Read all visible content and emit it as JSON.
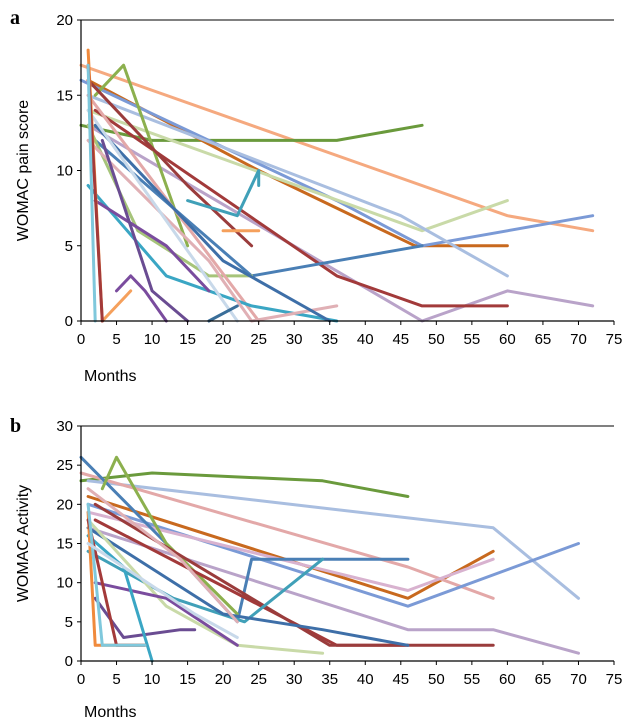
{
  "chart_data": [
    {
      "panel": "a",
      "type": "line",
      "title": "",
      "xlabel": "Months",
      "ylabel": "WOMAC pain score",
      "xlim": [
        0,
        75
      ],
      "ylim": [
        0,
        20
      ],
      "xticks": [
        "0",
        "5",
        "10",
        "15",
        "20",
        "25",
        "30",
        "35",
        "40",
        "45",
        "50",
        "55",
        "60",
        "65",
        "70",
        "75"
      ],
      "yticks": [
        "0",
        "5",
        "10",
        "15",
        "20"
      ],
      "grid": false,
      "legend": "none",
      "series": [
        {
          "color": "#f5a97f",
          "x": [
            0,
            60,
            72
          ],
          "y": [
            17,
            7,
            6
          ]
        },
        {
          "color": "#6a9a3c",
          "x": [
            0,
            10,
            20,
            36,
            48
          ],
          "y": [
            13,
            12,
            12,
            12,
            13
          ]
        },
        {
          "color": "#c8691e",
          "x": [
            1,
            25,
            47,
            60
          ],
          "y": [
            16,
            10,
            5,
            5
          ]
        },
        {
          "color": "#7b9ad6",
          "x": [
            0,
            36,
            48,
            72
          ],
          "y": [
            16,
            8,
            5,
            7
          ]
        },
        {
          "color": "#c9daa8",
          "x": [
            1,
            48,
            60
          ],
          "y": [
            14,
            6,
            8
          ]
        },
        {
          "color": "#a9bee0",
          "x": [
            1,
            45,
            60
          ],
          "y": [
            15,
            7,
            3
          ]
        },
        {
          "color": "#b9a3c9",
          "x": [
            1,
            48,
            60,
            72
          ],
          "y": [
            13,
            0,
            2,
            1
          ]
        },
        {
          "color": "#a23a3a",
          "x": [
            2,
            36,
            48,
            60
          ],
          "y": [
            14,
            3,
            1,
            1
          ]
        },
        {
          "color": "#4a7fb5",
          "x": [
            2,
            24,
            36,
            48
          ],
          "y": [
            12,
            3,
            4,
            5
          ]
        },
        {
          "color": "#8cb04e",
          "x": [
            2,
            6,
            15
          ],
          "y": [
            15,
            17,
            5
          ]
        },
        {
          "color": "#a6c47a",
          "x": [
            1,
            8,
            18,
            24
          ],
          "y": [
            13,
            6,
            3,
            3
          ]
        },
        {
          "color": "#e3a8a8",
          "x": [
            1,
            25
          ],
          "y": [
            15,
            0
          ]
        },
        {
          "color": "#3aa6c4",
          "x": [
            1,
            12,
            24,
            36
          ],
          "y": [
            9,
            3,
            1,
            0
          ]
        },
        {
          "color": "#e0b0b5",
          "x": [
            1,
            18,
            24,
            36
          ],
          "y": [
            12,
            4,
            0,
            1
          ]
        },
        {
          "color": "#9a3c3c",
          "x": [
            1,
            15,
            24
          ],
          "y": [
            16,
            9,
            5
          ]
        },
        {
          "color": "#3e6fa8",
          "x": [
            2,
            20,
            35
          ],
          "y": [
            13,
            4,
            0
          ]
        },
        {
          "color": "#7a4c9e",
          "x": [
            2,
            12,
            18
          ],
          "y": [
            8,
            5,
            2
          ]
        },
        {
          "color": "#6a4c92",
          "x": [
            3,
            10,
            15
          ],
          "y": [
            12,
            2,
            0
          ]
        },
        {
          "color": "#c8d9ea",
          "x": [
            1,
            16,
            22
          ],
          "y": [
            14,
            4,
            0
          ]
        },
        {
          "color": "#f08a3c",
          "x": [
            1,
            3
          ],
          "y": [
            18,
            0
          ]
        },
        {
          "color": "#f5a05c",
          "x": [
            3,
            7
          ],
          "y": [
            0,
            2
          ]
        },
        {
          "color": "#a33a3a",
          "x": [
            1,
            3
          ],
          "y": [
            17,
            0
          ]
        },
        {
          "color": "#7fc8dc",
          "x": [
            1,
            2
          ],
          "y": [
            17,
            0
          ]
        },
        {
          "color": "#f5a05c",
          "x": [
            20,
            25
          ],
          "y": [
            6,
            6
          ]
        },
        {
          "color": "#40a0b8",
          "x": [
            15,
            22,
            25,
            25
          ],
          "y": [
            8,
            7,
            10,
            9
          ]
        },
        {
          "color": "#3a6e99",
          "x": [
            18,
            22
          ],
          "y": [
            0,
            1
          ]
        },
        {
          "color": "#7a4c9e",
          "x": [
            5,
            7,
            9,
            12
          ],
          "y": [
            2,
            3,
            2,
            0
          ]
        }
      ]
    },
    {
      "panel": "b",
      "type": "line",
      "title": "",
      "xlabel": "Months",
      "ylabel": "WOMAC Activity",
      "xlim": [
        0,
        75
      ],
      "ylim": [
        0,
        30
      ],
      "xticks": [
        "0",
        "5",
        "10",
        "15",
        "20",
        "25",
        "30",
        "35",
        "40",
        "45",
        "50",
        "55",
        "60",
        "65",
        "70",
        "75"
      ],
      "yticks": [
        "0",
        "5",
        "10",
        "15",
        "20",
        "25",
        "30"
      ],
      "grid": false,
      "legend": "none",
      "series": [
        {
          "color": "#6a9a3c",
          "x": [
            0,
            10,
            34,
            46
          ],
          "y": [
            23,
            24,
            23,
            21
          ]
        },
        {
          "color": "#a9bee0",
          "x": [
            1,
            58,
            70
          ],
          "y": [
            23,
            17,
            8
          ]
        },
        {
          "color": "#c8691e",
          "x": [
            1,
            46,
            58
          ],
          "y": [
            21,
            8,
            14
          ]
        },
        {
          "color": "#e3a8a8",
          "x": [
            0,
            46,
            58
          ],
          "y": [
            24,
            12,
            8
          ]
        },
        {
          "color": "#7b9ad6",
          "x": [
            1,
            46,
            70
          ],
          "y": [
            20,
            7,
            15
          ]
        },
        {
          "color": "#d8b2cf",
          "x": [
            1,
            46,
            58
          ],
          "y": [
            19,
            9,
            13
          ]
        },
        {
          "color": "#b9a3c9",
          "x": [
            1,
            46,
            58,
            70
          ],
          "y": [
            17,
            4,
            4,
            1
          ]
        },
        {
          "color": "#4a7fb5",
          "x": [
            0,
            12,
            22,
            24,
            35,
            46
          ],
          "y": [
            26,
            15,
            5,
            13,
            13,
            13
          ]
        },
        {
          "color": "#8cb04e",
          "x": [
            3,
            5,
            12,
            22
          ],
          "y": [
            22,
            26,
            15,
            6
          ]
        },
        {
          "color": "#a23a3a",
          "x": [
            2,
            36,
            46
          ],
          "y": [
            18,
            2,
            2
          ]
        },
        {
          "color": "#9a3c3c",
          "x": [
            2,
            35,
            58
          ],
          "y": [
            20,
            2,
            2
          ]
        },
        {
          "color": "#40a0b8",
          "x": [
            1,
            13,
            23,
            34
          ],
          "y": [
            14,
            8,
            5,
            13
          ]
        },
        {
          "color": "#3e6fa8",
          "x": [
            1,
            20,
            34,
            46
          ],
          "y": [
            17,
            6,
            4,
            2
          ]
        },
        {
          "color": "#c9daa8",
          "x": [
            1,
            12,
            22,
            34
          ],
          "y": [
            18,
            7,
            2,
            1
          ]
        },
        {
          "color": "#7a4c9e",
          "x": [
            2,
            12,
            22
          ],
          "y": [
            10,
            8,
            2
          ]
        },
        {
          "color": "#6a4c92",
          "x": [
            2,
            6,
            14,
            16
          ],
          "y": [
            8,
            3,
            4,
            4
          ]
        },
        {
          "color": "#3aa6c4",
          "x": [
            1,
            6,
            10
          ],
          "y": [
            16,
            12,
            0
          ]
        },
        {
          "color": "#f08a3c",
          "x": [
            1,
            2,
            9
          ],
          "y": [
            19,
            2,
            2
          ]
        },
        {
          "color": "#a33a3a",
          "x": [
            1,
            5,
            9
          ],
          "y": [
            18,
            2,
            2
          ]
        },
        {
          "color": "#7fc8dc",
          "x": [
            1,
            3,
            9
          ],
          "y": [
            20,
            2,
            2
          ]
        },
        {
          "color": "#e0b0b5",
          "x": [
            1,
            14,
            22
          ],
          "y": [
            22,
            13,
            5
          ]
        },
        {
          "color": "#c8d9ea",
          "x": [
            1,
            16,
            22
          ],
          "y": [
            15,
            6,
            3
          ]
        }
      ]
    }
  ]
}
